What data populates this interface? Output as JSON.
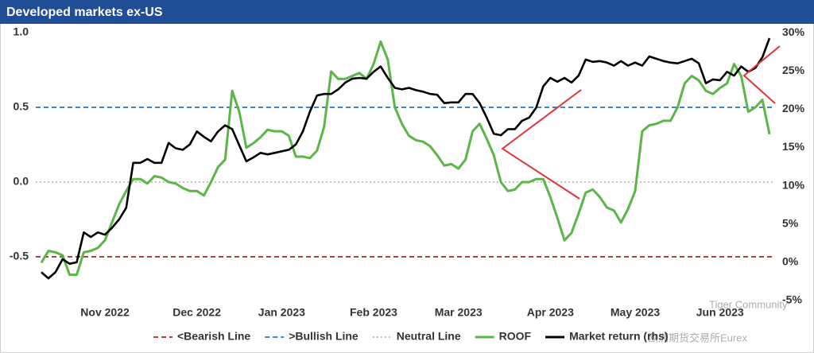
{
  "chart_data": {
    "type": "line",
    "title": "Developed markets ex-US",
    "categories": [
      null,
      null,
      null,
      null,
      null,
      null,
      null,
      null,
      null,
      "Nov 2022",
      null,
      null,
      null,
      null,
      null,
      null,
      null,
      null,
      null,
      null,
      null,
      null,
      "Dec 2022",
      null,
      null,
      null,
      null,
      null,
      null,
      null,
      null,
      null,
      null,
      null,
      "Jan 2023",
      null,
      null,
      null,
      null,
      null,
      null,
      null,
      null,
      null,
      null,
      null,
      null,
      "Feb 2023",
      null,
      null,
      null,
      null,
      null,
      null,
      null,
      null,
      null,
      null,
      null,
      "Mar 2023",
      null,
      null,
      null,
      null,
      null,
      null,
      null,
      null,
      null,
      null,
      null,
      null,
      "Apr 2023",
      null,
      null,
      null,
      null,
      null,
      null,
      null,
      null,
      null,
      null,
      null,
      "May 2023",
      null,
      null,
      null,
      null,
      null,
      null,
      null,
      null,
      null,
      null,
      null,
      "Jun 2023",
      null,
      null,
      null,
      null,
      null,
      null,
      null
    ],
    "series": [
      {
        "name": "ROOF",
        "color": "#5cb548",
        "axis": "y",
        "values": [
          -0.54,
          -0.46,
          -0.47,
          -0.49,
          -0.62,
          -0.62,
          -0.47,
          -0.46,
          -0.44,
          -0.39,
          -0.27,
          -0.15,
          -0.06,
          0.02,
          0.02,
          -0.01,
          0.04,
          0.03,
          0,
          -0.01,
          -0.04,
          -0.06,
          -0.06,
          -0.09,
          0,
          0.1,
          0.15,
          0.61,
          0.47,
          0.23,
          0.26,
          0.3,
          0.35,
          0.34,
          0.34,
          0.31,
          0.17,
          0.17,
          0.16,
          0.21,
          0.37,
          0.74,
          0.69,
          0.69,
          0.71,
          0.73,
          0.69,
          0.79,
          0.94,
          0.82,
          0.5,
          0.39,
          0.31,
          0.28,
          0.27,
          0.24,
          0.18,
          0.11,
          0.12,
          0.09,
          0.15,
          0.34,
          0.39,
          0.29,
          0.18,
          0,
          -0.06,
          -0.05,
          0,
          0,
          0.02,
          0.02,
          -0.1,
          -0.24,
          -0.39,
          -0.34,
          -0.21,
          -0.07,
          -0.05,
          -0.1,
          -0.17,
          -0.19,
          -0.27,
          -0.18,
          -0.06,
          0.34,
          0.38,
          0.39,
          0.41,
          0.41,
          0.5,
          0.66,
          0.71,
          0.68,
          0.61,
          0.59,
          0.63,
          0.66,
          0.79,
          0.71,
          0.47,
          0.5,
          0.55,
          0.32
        ]
      },
      {
        "name": "Market return (rhs)",
        "color": "#000000",
        "axis": "y2",
        "values": [
          -1.3,
          -2.1,
          -1.3,
          0.4,
          -0.2,
          0.0,
          3.9,
          3.3,
          3.9,
          3.6,
          4.5,
          5.6,
          7.1,
          13.0,
          13.0,
          13.5,
          13.0,
          13.0,
          15.6,
          14.9,
          14.7,
          15.4,
          17.1,
          16.4,
          15.8,
          17.1,
          17.9,
          17.4,
          15.3,
          13.2,
          13.7,
          14.3,
          14.1,
          14.3,
          14.5,
          14.7,
          15.4,
          17.1,
          19.7,
          21.8,
          22.0,
          22.0,
          22.6,
          23.5,
          24.0,
          24.1,
          24.0,
          24.9,
          25.6,
          24.1,
          22.8,
          22.6,
          22.8,
          22.5,
          22.3,
          22.0,
          21.9,
          20.8,
          20.9,
          20.9,
          22.0,
          22.0,
          20.8,
          18.9,
          16.8,
          16.6,
          17.4,
          17.4,
          18.5,
          18.9,
          20.2,
          23.0,
          24.1,
          23.6,
          24.1,
          23.5,
          24.4,
          26.5,
          26.2,
          26.3,
          26.1,
          25.7,
          26.3,
          25.7,
          26.1,
          25.7,
          26.9,
          26.6,
          26.3,
          26.1,
          26.0,
          26.3,
          26.6,
          26.0,
          23.4,
          23.9,
          23.8,
          24.9,
          24.4,
          25.6,
          24.9,
          25.4,
          26.8,
          29.3
        ]
      }
    ],
    "reference_lines": [
      {
        "name": "<Bearish Line",
        "value": -0.5,
        "color": "#a0282d",
        "style": "dashed"
      },
      {
        "name": ">Bullish Line",
        "value": 0.5,
        "color": "#1f77c4",
        "style": "dashed"
      },
      {
        "name": "Neutral Line",
        "value": 0,
        "color": "#b0b0b0",
        "style": "dotted"
      }
    ],
    "ylim": [
      -0.8,
      1.05
    ],
    "yticks": [
      {
        "value": -0.5,
        "label": "-0.5"
      },
      {
        "value": 0,
        "label": "0.0"
      },
      {
        "value": 0.5,
        "label": "0.5"
      },
      {
        "value": 1,
        "label": "1.0"
      }
    ],
    "y2lim": [
      -5.15,
      31
    ],
    "y2ticks": [
      {
        "value": -5,
        "label": "-5%"
      },
      {
        "value": 0,
        "label": "0%"
      },
      {
        "value": 5,
        "label": "5%"
      },
      {
        "value": 10,
        "label": "10%"
      },
      {
        "value": 15,
        "label": "15%"
      },
      {
        "value": 20,
        "label": "20%"
      },
      {
        "value": 25,
        "label": "25%"
      },
      {
        "value": 30,
        "label": "30%"
      }
    ],
    "grid": false,
    "legend": "bottom",
    "watermarks": [
      "Tiger Community",
      "欧洲期货交易所Eurex"
    ]
  }
}
